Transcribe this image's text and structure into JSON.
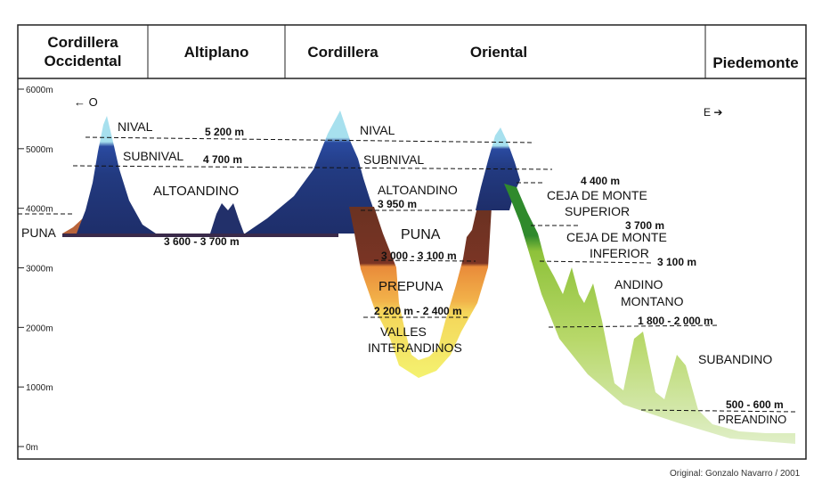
{
  "header": {
    "regions": [
      {
        "id": "cordillera-occidental",
        "lines": [
          "Cordillera",
          "Occidental"
        ]
      },
      {
        "id": "altiplano",
        "lines": [
          "Altiplano"
        ]
      },
      {
        "id": "cordillera",
        "lines": [
          "Cordillera"
        ]
      },
      {
        "id": "oriental",
        "lines": [
          "Oriental"
        ]
      },
      {
        "id": "piedemonte",
        "lines": [
          "Piedemonte"
        ]
      }
    ]
  },
  "axis": {
    "ticks": [
      "6000m",
      "5000m",
      "4000m",
      "3000m",
      "2000m",
      "1000m",
      "0m"
    ],
    "west": "← O",
    "east": "E ➔"
  },
  "zones": {
    "nival_w": "NIVAL",
    "subnival_w": "SUBNIVAL",
    "altoandino_w": "ALTOANDINO",
    "puna_w": "PUNA",
    "nival_e": "NIVAL",
    "subnival_e": "SUBNIVAL",
    "altoandino_e": "ALTOANDINO",
    "puna_e": "PUNA",
    "prepuna": "PREPUNA",
    "valles_1": "VALLES",
    "valles_2": "INTERANDINOS",
    "ceja_sup_1": "CEJA DE MONTE",
    "ceja_sup_2": "SUPERIOR",
    "ceja_inf_1": "CEJA DE MONTE",
    "ceja_inf_2": "INFERIOR",
    "andino_1": "ANDINO",
    "andino_2": "MONTANO",
    "subandino": "SUBANDINO",
    "preandino": "PREANDINO"
  },
  "boundaries": {
    "b5200": "5 200 m",
    "b4700": "4 700 m",
    "b3950": "3 950 m",
    "b3600": "3 600 - 3 700 m",
    "b3000": "3 000 - 3 100 m",
    "b2200": "2 200 m - 2 400 m",
    "b4400": "4 400 m",
    "b3700": "3 700 m",
    "b3100": "3 100 m",
    "b1800": "1 800 - 2 000 m",
    "b500": "500 - 600 m"
  },
  "credit": "Original: Gonzalo Navarro / 2001"
}
